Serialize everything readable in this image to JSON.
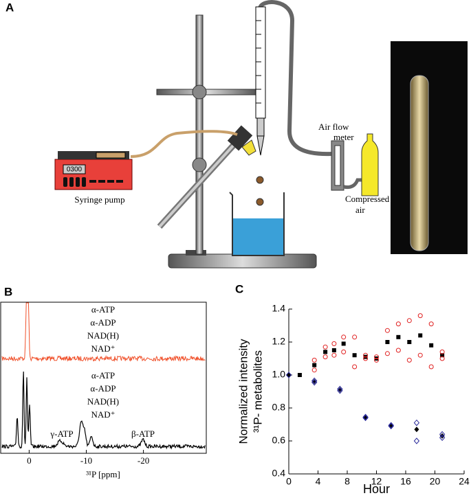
{
  "panel_a": {
    "letter": "A",
    "pump_display": "0300",
    "pump_label": "Syringe pump",
    "flow_label": [
      "Air flow",
      "meter"
    ],
    "air_label": [
      "Compressed",
      "air"
    ]
  },
  "panel_b": {
    "letter": "B",
    "xlim": [
      4.5,
      -31
    ],
    "xticks": [
      0,
      -10,
      -20
    ],
    "xlabel": "³¹P [ppm]",
    "upper_labels": [
      "α-ATP",
      "α-ADP",
      "NAD(H)",
      "NAD⁺"
    ],
    "lower_labels": [
      "α-ATP",
      "α-ADP",
      "NAD(H)",
      "NAD⁺"
    ],
    "peak_labels": [
      "γ-ATP",
      "β-ATP"
    ]
  },
  "panel_c": {
    "letter": "C"
  },
  "chart_data": {
    "type": "scatter",
    "xlabel": "Hour",
    "ylabel": [
      "Normalized intensity",
      "³¹P- metabolites"
    ],
    "xlim": [
      0,
      24
    ],
    "xticks": [
      0,
      4,
      8,
      12,
      16,
      20,
      24
    ],
    "ylim": [
      0.4,
      1.4
    ],
    "yticks": [
      0.4,
      0.6,
      0.8,
      {
        "value": 1,
        "label": "1.0"
      },
      1.2,
      1.4
    ],
    "series": [
      {
        "marker": "square",
        "color": "#000000",
        "x": [
          1.5,
          3.5,
          5,
          6.2,
          7.5,
          9,
          10.5,
          12,
          13.5,
          15,
          16.5,
          18,
          19.5,
          21
        ],
        "values": [
          1.0,
          1.06,
          1.14,
          1.15,
          1.19,
          1.12,
          1.11,
          1.1,
          1.2,
          1.23,
          1.2,
          1.24,
          1.18,
          1.12
        ]
      },
      {
        "marker": "circle-open",
        "color": "#e02020",
        "x": [
          3.5,
          3.5,
          5,
          5,
          6.2,
          6.2,
          7.5,
          7.5,
          9,
          9,
          10.5,
          10.5,
          12,
          12,
          13.5,
          13.5,
          15,
          15,
          16.5,
          16.5,
          18,
          18,
          19.5,
          19.5,
          21,
          21
        ],
        "values": [
          1.09,
          1.03,
          1.17,
          1.11,
          1.19,
          1.12,
          1.23,
          1.14,
          1.23,
          1.05,
          1.12,
          1.1,
          1.11,
          1.09,
          1.27,
          1.13,
          1.31,
          1.15,
          1.33,
          1.09,
          1.36,
          1.12,
          1.31,
          1.05,
          1.14,
          1.1
        ]
      },
      {
        "marker": "diamond",
        "color": "#000000",
        "x": [
          0,
          3.5,
          7,
          10.5,
          14,
          17.5,
          21
        ],
        "values": [
          1.0,
          0.96,
          0.91,
          0.74,
          0.69,
          0.67,
          0.63
        ]
      },
      {
        "marker": "diamond-open",
        "color": "#2a2a9a",
        "x": [
          0,
          3.5,
          3.5,
          7,
          7,
          10.5,
          10.5,
          14,
          14,
          17.5,
          17.5,
          21,
          21
        ],
        "values": [
          1.0,
          0.955,
          0.965,
          0.905,
          0.915,
          0.74,
          0.745,
          0.69,
          0.695,
          0.71,
          0.6,
          0.64,
          0.62
        ]
      }
    ]
  }
}
